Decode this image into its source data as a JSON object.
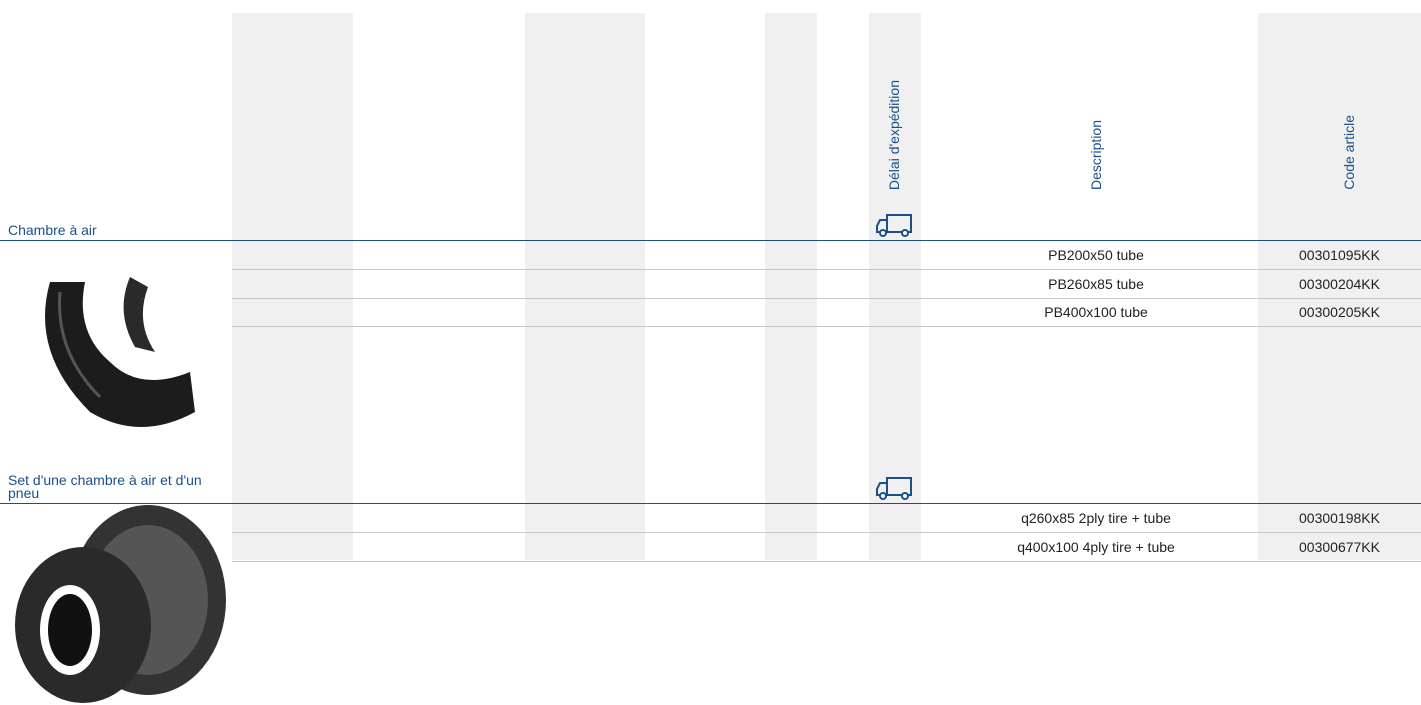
{
  "table": {
    "headers": [
      "Délai d'expédition",
      "Description",
      "Code article"
    ],
    "sections": [
      {
        "title": "Chambre à air",
        "rows": [
          [
            "PB200x50 tube",
            "00301095KK"
          ],
          [
            "PB260x85 tube",
            "00300204KK"
          ],
          [
            "PB400x100 tube",
            "00300205KK"
          ]
        ]
      },
      {
        "title": "Set d'une chambre à air et d'un pneu",
        "rows": [
          [
            "q260x85 2ply tire + tube",
            "00300198KK"
          ],
          [
            "q400x100 4ply tire + tube",
            "00300677KK"
          ]
        ]
      }
    ]
  }
}
